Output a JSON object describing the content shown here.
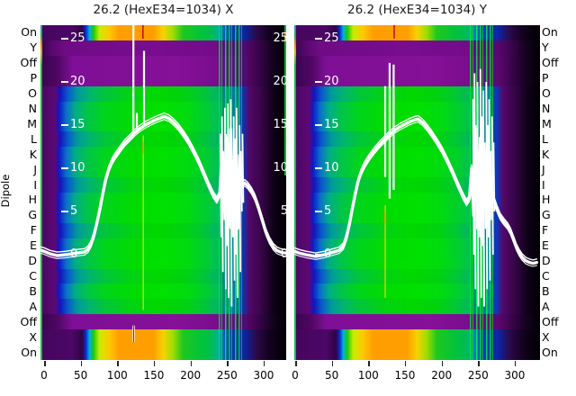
{
  "panels": [
    {
      "id": "X",
      "title": "26.2 (HexE34=1034) X",
      "show_right_ticks": true
    },
    {
      "id": "Y",
      "title": "26.2 (HexE34=1034) Y",
      "show_right_ticks": false
    }
  ],
  "axis_label": "Dipole",
  "row_labels_left": [
    "On",
    "Y",
    "Off",
    "P",
    "O",
    "N",
    "M",
    "L",
    "K",
    "J",
    "I",
    "H",
    "G",
    "F",
    "E",
    "D",
    "C",
    "B",
    "A",
    "Off",
    "X",
    "On"
  ],
  "row_labels_right": [
    "On",
    "Y",
    "Off",
    "P",
    "O",
    "N",
    "M",
    "L",
    "K",
    "J",
    "I",
    "H",
    "G",
    "F",
    "E",
    "D",
    "C",
    "B",
    "A",
    "Off",
    "X",
    "On"
  ],
  "row_bands": [
    "rain",
    "purA",
    "purB",
    "purB",
    "gA",
    "gB",
    "gB",
    "gA",
    "gB",
    "gB",
    "gA",
    "gB",
    "gB",
    "gA",
    "gB",
    "gB",
    "gA",
    "gB",
    "gA",
    "purB",
    "rain",
    "rain"
  ],
  "value_ticks": [
    25,
    20,
    15,
    10,
    5,
    0
  ],
  "x_ticks": [
    0,
    50,
    100,
    150,
    200,
    250,
    300
  ],
  "chart_data": [
    {
      "panel": "X",
      "type": "heatmap",
      "x_range": [
        0,
        330
      ],
      "value_axis_range": [
        -10,
        26.5
      ],
      "colormap": "spectral (purple-blue-green-yellow-orange)",
      "curve": [
        [
          -4,
          0.5
        ],
        [
          0,
          0.4
        ],
        [
          8,
          0.1
        ],
        [
          18,
          -0.1
        ],
        [
          30,
          0
        ],
        [
          45,
          0.2
        ],
        [
          55,
          0.3
        ],
        [
          60,
          0.6
        ],
        [
          64,
          1.2
        ],
        [
          68,
          2.2
        ],
        [
          72,
          3.6
        ],
        [
          76,
          5.2
        ],
        [
          80,
          7
        ],
        [
          84,
          8.6
        ],
        [
          88,
          9.8
        ],
        [
          93,
          10.8
        ],
        [
          98,
          11.5
        ],
        [
          104,
          12.2
        ],
        [
          110,
          12.9
        ],
        [
          117,
          13.5
        ],
        [
          124,
          14.1
        ],
        [
          131,
          14.6
        ],
        [
          138,
          15
        ],
        [
          145,
          15.3
        ],
        [
          152,
          15.6
        ],
        [
          158,
          15.8
        ],
        [
          164,
          16
        ],
        [
          170,
          15.8
        ],
        [
          176,
          15.4
        ],
        [
          183,
          14.8
        ],
        [
          190,
          14
        ],
        [
          197,
          13.1
        ],
        [
          204,
          12
        ],
        [
          211,
          10.8
        ],
        [
          218,
          9.4
        ],
        [
          225,
          8
        ],
        [
          231,
          6.9
        ],
        [
          236,
          6.3
        ],
        [
          240,
          7
        ],
        [
          243,
          11
        ],
        [
          246,
          5
        ],
        [
          249,
          13.5
        ],
        [
          252,
          3.5
        ],
        [
          255,
          14.5
        ],
        [
          258,
          4
        ],
        [
          261,
          13
        ],
        [
          264,
          3
        ],
        [
          267,
          11.5
        ],
        [
          270,
          8
        ],
        [
          274,
          8.3
        ],
        [
          278,
          8
        ],
        [
          283,
          7.4
        ],
        [
          288,
          6.6
        ],
        [
          293,
          5.4
        ],
        [
          298,
          4
        ],
        [
          303,
          2.6
        ],
        [
          308,
          1.6
        ],
        [
          313,
          0.9
        ],
        [
          318,
          0.5
        ],
        [
          323,
          0.3
        ],
        [
          328,
          0.2
        ],
        [
          331,
          0.2
        ]
      ],
      "white_spikes": [
        [
          122,
          26.6,
          13.9
        ],
        [
          136.5,
          23.6,
          14.9
        ],
        [
          126.7,
          16.4,
          14.1
        ]
      ],
      "red_lines": [
        [
          135,
          26.6,
          25.0
        ]
      ],
      "yellow_lines": [
        [
          135.5,
          13.8,
          -6.4
        ]
      ],
      "bottom_markers": [
        [
          122.3,
          -8.2,
          -10.1
        ]
      ],
      "noise_band": [
        239,
        274
      ],
      "noise_strokes": [
        [
          241,
          14,
          2
        ],
        [
          243,
          16,
          -2
        ],
        [
          245,
          12,
          4
        ],
        [
          247,
          17,
          -4
        ],
        [
          249,
          10,
          1
        ],
        [
          251,
          17.5,
          -5
        ],
        [
          253,
          13,
          3
        ],
        [
          255,
          18,
          -6
        ],
        [
          257,
          11,
          2
        ],
        [
          259,
          16,
          -3
        ],
        [
          261,
          13,
          0
        ],
        [
          263,
          17,
          -5
        ],
        [
          265,
          10,
          3
        ],
        [
          267,
          15,
          -2
        ],
        [
          269,
          12,
          5
        ],
        [
          271,
          14,
          6
        ]
      ]
    },
    {
      "panel": "Y",
      "type": "heatmap",
      "x_range": [
        0,
        330
      ],
      "value_axis_range": [
        -10,
        26.5
      ],
      "colormap": "spectral (purple-blue-green-yellow-orange)",
      "curve": [
        [
          -1,
          0.4
        ],
        [
          5,
          0.2
        ],
        [
          15,
          0
        ],
        [
          28,
          -0.2
        ],
        [
          40,
          0
        ],
        [
          52,
          0.3
        ],
        [
          60,
          0.5
        ],
        [
          66,
          1
        ],
        [
          70,
          2
        ],
        [
          74,
          3.5
        ],
        [
          78,
          5.3
        ],
        [
          82,
          7
        ],
        [
          86,
          8.5
        ],
        [
          90,
          9.5
        ],
        [
          95,
          10.4
        ],
        [
          101,
          11.2
        ],
        [
          108,
          12
        ],
        [
          115,
          12.7
        ],
        [
          122,
          13.3
        ],
        [
          129,
          13.9
        ],
        [
          136,
          14.4
        ],
        [
          143,
          14.8
        ],
        [
          150,
          15.1
        ],
        [
          157,
          15.4
        ],
        [
          163,
          15.6
        ],
        [
          168,
          15.7
        ],
        [
          174,
          15.3
        ],
        [
          180,
          14.7
        ],
        [
          187,
          13.9
        ],
        [
          194,
          13
        ],
        [
          201,
          12
        ],
        [
          208,
          10.8
        ],
        [
          215,
          9.5
        ],
        [
          222,
          8.1
        ],
        [
          229,
          6.8
        ],
        [
          234,
          6
        ],
        [
          238,
          6.5
        ],
        [
          241,
          10
        ],
        [
          244,
          4.5
        ],
        [
          247,
          12
        ],
        [
          250,
          3
        ],
        [
          253,
          13.5
        ],
        [
          256,
          4
        ],
        [
          259,
          12
        ],
        [
          262,
          3.5
        ],
        [
          265,
          10
        ],
        [
          268,
          7.5
        ],
        [
          272,
          6.2
        ],
        [
          276,
          5.2
        ],
        [
          280,
          4.4
        ],
        [
          285,
          3.8
        ],
        [
          290,
          3.3
        ],
        [
          294,
          2.7
        ],
        [
          298,
          1.8
        ],
        [
          302,
          0.9
        ],
        [
          306,
          0.2
        ],
        [
          310,
          -0.3
        ],
        [
          315,
          -0.7
        ],
        [
          320,
          -0.9
        ],
        [
          325,
          -1
        ],
        [
          330,
          -0.9
        ]
      ],
      "white_spikes": [
        [
          123,
          19.5,
          9
        ],
        [
          129,
          22.2,
          6.5
        ],
        [
          134.5,
          22,
          7.5
        ]
      ],
      "red_lines": [
        [
          135.2,
          26.6,
          25.0
        ]
      ],
      "yellow_lines": [
        [
          123,
          5.7,
          -5
        ]
      ],
      "bottom_markers": [],
      "noise_band": [
        239,
        274
      ],
      "noise_strokes": [
        [
          243,
          18,
          0
        ],
        [
          245,
          21,
          -4
        ],
        [
          247,
          15,
          3
        ],
        [
          249,
          20,
          -6
        ],
        [
          251,
          12,
          2
        ],
        [
          253,
          21.5,
          -5
        ],
        [
          255,
          16,
          1
        ],
        [
          257,
          19,
          -6
        ],
        [
          259,
          13,
          3
        ],
        [
          261,
          20,
          -4
        ],
        [
          263,
          15,
          2
        ],
        [
          265,
          18,
          -3
        ],
        [
          267,
          12,
          4
        ],
        [
          269,
          16,
          0
        ],
        [
          271,
          13,
          5
        ]
      ]
    }
  ]
}
